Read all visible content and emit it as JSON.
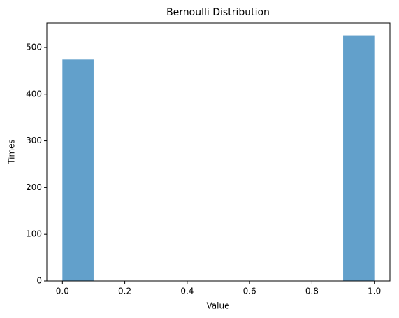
{
  "chart_data": {
    "type": "histogram",
    "title": "Bernoulli Distribution",
    "x_label": "Value",
    "y_label": "Times",
    "bins": [
      0,
      0.1,
      0.2,
      0.3,
      0.4,
      0.5,
      0.6,
      0.7,
      0.8,
      0.9,
      1
    ],
    "counts": [
      474,
      0,
      0,
      0,
      0,
      0,
      0,
      0,
      0,
      526
    ],
    "color": "#62a0cb",
    "xlim": [
      -0.05,
      1.05
    ],
    "xticks": [
      {
        "value": 0,
        "label": "0.0"
      },
      {
        "value": 0.2,
        "label": "0.2"
      },
      {
        "value": 0.4,
        "label": "0.4"
      },
      {
        "value": 0.6,
        "label": "0.6"
      },
      {
        "value": 0.8,
        "label": "0.8"
      },
      {
        "value": 1,
        "label": "1.0"
      }
    ],
    "ylim": [
      0,
      552.3
    ],
    "yticks": [
      0,
      100,
      200,
      300,
      400,
      500
    ]
  }
}
